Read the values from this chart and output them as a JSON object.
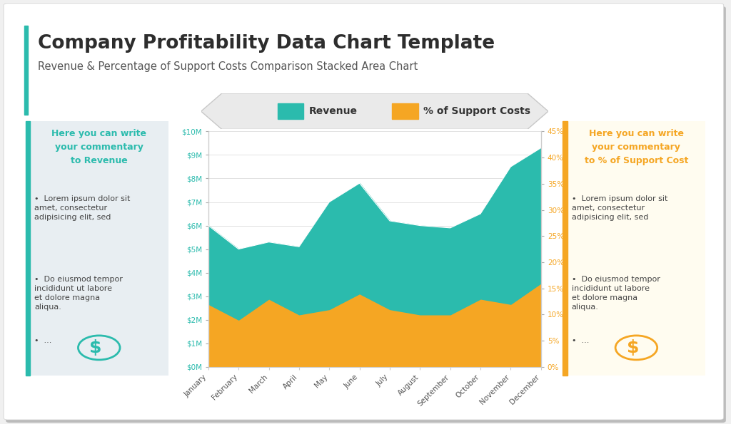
{
  "title": "Company Profitability Data Chart Template",
  "subtitle": "Revenue & Percentage of Support Costs Comparison Stacked Area Chart",
  "months": [
    "January",
    "February",
    "March",
    "April",
    "May",
    "June",
    "July",
    "August",
    "September",
    "October",
    "November",
    "December"
  ],
  "revenue": [
    6.0,
    5.0,
    5.3,
    5.1,
    7.0,
    7.8,
    6.2,
    6.0,
    5.9,
    6.5,
    8.5,
    9.3
  ],
  "support_pct": [
    12,
    9,
    13,
    10,
    11,
    14,
    11,
    10,
    10,
    13,
    12,
    16
  ],
  "revenue_color": "#2BBBAD",
  "support_color": "#F5A623",
  "left_box_color": "#E8EEF2",
  "left_box_border": "#2BBBAD",
  "right_box_bg": "#FFFCF0",
  "right_box_border": "#F5A623",
  "left_title": "Here you can write\nyour commentary\nto Revenue",
  "left_title_color": "#2BBBAD",
  "right_title": "Here you can write\nyour commentary\nto % of Support Cost",
  "right_title_color": "#F5A623",
  "bullet1": "Lorem ipsum dolor sit amet, consectetur adipisicing elit, sed",
  "bullet2": "Do eiusmod tempor incididunt ut labore et dolore magna aliqua.",
  "bullet3": "...",
  "bg_color": "#FFFFFF",
  "title_color": "#2D2D2D",
  "subtitle_color": "#555555",
  "grid_color": "#DDDDDD",
  "left_axis_color": "#2BBBAD",
  "right_axis_color": "#F5A623",
  "accent_color": "#2BBBAD",
  "banner_color": "#EAEAEA",
  "banner_edge": "#C8C8C8",
  "text_color": "#444444"
}
